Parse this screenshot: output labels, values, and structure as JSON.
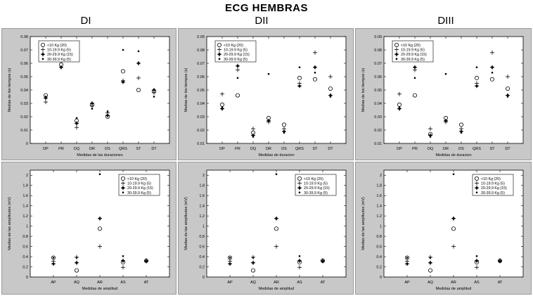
{
  "title": "ECG HEMBRAS",
  "columns": [
    "DI",
    "DII",
    "DIII"
  ],
  "chart_data": [
    {
      "type": "scatter",
      "lead": "DI",
      "row": "durations",
      "categories": [
        "DP",
        "PR",
        "DQ",
        "DR",
        "DS",
        "QRS",
        "ST",
        "DT"
      ],
      "ylabel": "Medias de los tiempos (s)",
      "xlabel": "Medidas de las duraciones",
      "ylim": [
        0,
        0.08
      ],
      "yticks": [
        0,
        0.01,
        0.02,
        0.03,
        0.04,
        0.05,
        0.06,
        0.07,
        0.08
      ],
      "ytick_labels": [
        "0",
        "0.01",
        "0.02",
        "0.03",
        "0.04",
        "0.05",
        "0.06",
        "0.07",
        "0.08"
      ],
      "legend_position": "top-left",
      "series": [
        {
          "name": "<10 Kg (20)",
          "marker": "circle",
          "values": [
            0.036,
            0.059,
            0.017,
            0.029,
            0.02,
            0.054,
            0.04,
            0.039
          ]
        },
        {
          "name": "10-19.9 Kg (5)",
          "marker": "plus",
          "values": [
            0.031,
            0.062,
            0.012,
            0.028,
            0.023,
            0.047,
            0.049,
            0.038
          ]
        },
        {
          "name": "20-29.9 Kg (15)",
          "marker": "diamond",
          "values": [
            0.034,
            0.057,
            0.015,
            0.03,
            0.021,
            0.046,
            0.06,
            0.04
          ]
        },
        {
          "name": "30-39.9 Kg (5)",
          "marker": "point",
          "values": [
            0.035,
            0.067,
            0.019,
            0.026,
            0.024,
            0.07,
            0.069,
            0.035
          ]
        }
      ]
    },
    {
      "type": "scatter",
      "lead": "DII",
      "row": "durations",
      "categories": [
        "DP",
        "PR",
        "DQ",
        "DR",
        "DS",
        "QRS",
        "ST",
        "DT"
      ],
      "ylabel": "Medias de los tiempos (s)",
      "xlabel": "Medidas de duracion",
      "ylim": [
        0.01,
        0.09
      ],
      "yticks": [
        0.01,
        0.02,
        0.03,
        0.04,
        0.05,
        0.06,
        0.07,
        0.08,
        0.09
      ],
      "ytick_labels": [
        "0.01",
        "0.02",
        "0.03",
        "0.04",
        "0.05",
        "0.06",
        "0.07",
        "0.08",
        "0.09"
      ],
      "legend_position": "top-left",
      "series": [
        {
          "name": "<10 Kg (20)",
          "marker": "circle",
          "values": [
            0.039,
            0.046,
            0.018,
            0.029,
            0.024,
            0.059,
            0.058,
            0.051
          ]
        },
        {
          "name": "10-19.9 Kg (5)",
          "marker": "plus",
          "values": [
            0.047,
            0.065,
            0.021,
            0.026,
            0.021,
            0.055,
            0.078,
            0.06
          ]
        },
        {
          "name": "20-29.9 Kg (15)",
          "marker": "diamond",
          "values": [
            0.036,
            0.068,
            0.016,
            0.027,
            0.019,
            0.053,
            0.067,
            0.046
          ]
        },
        {
          "name": "30-39.9 Kg (5)",
          "marker": "point",
          "values": [
            0.037,
            0.059,
            0.015,
            0.062,
            0.018,
            0.067,
            0.063,
            0.045
          ]
        }
      ]
    },
    {
      "type": "scatter",
      "lead": "DIII",
      "row": "durations",
      "categories": [
        "DP",
        "PR",
        "DQ",
        "DR",
        "DS",
        "QRS",
        "ST",
        "DT"
      ],
      "ylabel": "Medias de los tiempos (s)",
      "xlabel": "Medidas de duracion",
      "ylim": [
        0.01,
        0.09
      ],
      "yticks": [
        0.01,
        0.02,
        0.03,
        0.04,
        0.05,
        0.06,
        0.07,
        0.08,
        0.09
      ],
      "ytick_labels": [
        "0.01",
        "0.02",
        "0.03",
        "0.04",
        "0.05",
        "0.06",
        "0.07",
        "0.08",
        "0.09"
      ],
      "legend_position": "top-left",
      "series": [
        {
          "name": "<10 Kg (20)",
          "marker": "circle",
          "values": [
            0.039,
            0.046,
            0.017,
            0.029,
            0.024,
            0.059,
            0.058,
            0.051
          ]
        },
        {
          "name": "10-19.9 Kg (5)",
          "marker": "plus",
          "values": [
            0.047,
            0.065,
            0.021,
            0.026,
            0.021,
            0.055,
            0.078,
            0.06
          ]
        },
        {
          "name": "20-29.9 Kg (15)",
          "marker": "diamond",
          "values": [
            0.036,
            0.067,
            0.016,
            0.027,
            0.019,
            0.053,
            0.067,
            0.046
          ]
        },
        {
          "name": "30-39.9 Kg (5)",
          "marker": "point",
          "values": [
            0.037,
            0.059,
            0.015,
            0.062,
            0.018,
            0.067,
            0.063,
            0.045
          ]
        }
      ]
    },
    {
      "type": "scatter",
      "lead": "DI",
      "row": "amplitudes",
      "categories": [
        "AP",
        "AQ",
        "AR",
        "AS",
        "AT"
      ],
      "ylabel": "Medias de las amplitudes (mV)",
      "xlabel": "Medidas de amplitud",
      "ylim": [
        0,
        2.1
      ],
      "yticks": [
        0,
        0.2,
        0.4,
        0.6,
        0.8,
        1,
        1.2,
        1.4,
        1.6,
        1.8,
        2
      ],
      "ytick_labels": [
        "0",
        "0.2",
        "0.4",
        "0.6",
        "0.8",
        "1",
        "1.2",
        "1.4",
        "1.6",
        "1.8",
        "2"
      ],
      "legend_position": "top-right",
      "series": [
        {
          "name": "<10 Kg (20)",
          "marker": "circle",
          "values": [
            0.38,
            0.13,
            0.95,
            0.29,
            0.32
          ]
        },
        {
          "name": "10-19.9 Kg (5)",
          "marker": "plus",
          "values": [
            0.31,
            0.39,
            0.6,
            0.19,
            0.33
          ]
        },
        {
          "name": "20-29.9 Kg (15)",
          "marker": "diamond",
          "values": [
            0.26,
            0.28,
            1.15,
            0.32,
            0.31
          ]
        },
        {
          "name": "30-39.9 Kg (5)",
          "marker": "point",
          "values": [
            0.38,
            0.38,
            2.02,
            0.41,
            0.3
          ]
        }
      ]
    },
    {
      "type": "scatter",
      "lead": "DII",
      "row": "amplitudes",
      "categories": [
        "AP",
        "AQ",
        "AR",
        "AS",
        "AT"
      ],
      "ylabel": "Medias de las amplitudes (mV)",
      "xlabel": "Medidas de amplitud",
      "ylim": [
        0,
        2.1
      ],
      "yticks": [
        0,
        0.2,
        0.4,
        0.6,
        0.8,
        1,
        1.2,
        1.4,
        1.6,
        1.8,
        2
      ],
      "ytick_labels": [
        "0",
        "0.2",
        "0.4",
        "0.6",
        "0.8",
        "1",
        "1.2",
        "1.4",
        "1.6",
        "1.8",
        "2"
      ],
      "legend_position": "top-right",
      "series": [
        {
          "name": "<10 Kg (20)",
          "marker": "circle",
          "values": [
            0.38,
            0.13,
            0.95,
            0.29,
            0.32
          ]
        },
        {
          "name": "10-19.9 Kg (5)",
          "marker": "plus",
          "values": [
            0.31,
            0.39,
            0.6,
            0.19,
            0.33
          ]
        },
        {
          "name": "20-29.9 Kg (15)",
          "marker": "diamond",
          "values": [
            0.26,
            0.28,
            1.15,
            0.32,
            0.31
          ]
        },
        {
          "name": "30-39.9 Kg (5)",
          "marker": "point",
          "values": [
            0.38,
            0.38,
            2.02,
            0.41,
            0.3
          ]
        }
      ]
    },
    {
      "type": "scatter",
      "lead": "DIII",
      "row": "amplitudes",
      "categories": [
        "AP",
        "AQ",
        "AR",
        "AS",
        "AT"
      ],
      "ylabel": "Medias de las amplitudes (mV)",
      "xlabel": "Medidas de amplitud",
      "ylim": [
        0,
        2.1
      ],
      "yticks": [
        0,
        0.2,
        0.4,
        0.6,
        0.8,
        1,
        1.2,
        1.4,
        1.6,
        1.8,
        2
      ],
      "ytick_labels": [
        "0",
        "0.2",
        "0.4",
        "0.6",
        "0.8",
        "1",
        "1.2",
        "1.4",
        "1.6",
        "1.8",
        "2"
      ],
      "legend_position": "top-right",
      "series": [
        {
          "name": "<10 Kg (20)",
          "marker": "circle",
          "values": [
            0.38,
            0.13,
            0.95,
            0.29,
            0.32
          ]
        },
        {
          "name": "10-19.9 Kg (5)",
          "marker": "plus",
          "values": [
            0.31,
            0.39,
            0.6,
            0.19,
            0.33
          ]
        },
        {
          "name": "20-29.9 Kg (15)",
          "marker": "diamond",
          "values": [
            0.26,
            0.28,
            1.15,
            0.32,
            0.31
          ]
        },
        {
          "name": "30-39.9 Kg (5)",
          "marker": "point",
          "values": [
            0.38,
            0.38,
            2.02,
            0.41,
            0.3
          ]
        }
      ]
    }
  ]
}
